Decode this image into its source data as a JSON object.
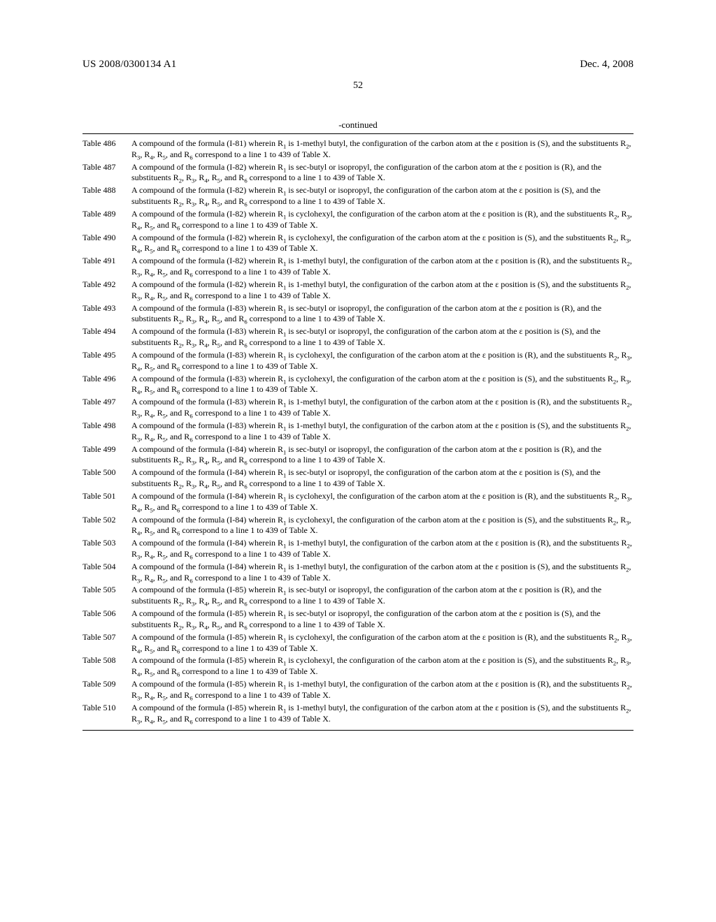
{
  "header": {
    "left": "US 2008/0300134 A1",
    "right": "Dec. 4, 2008"
  },
  "pageNumber": "52",
  "continuedLabel": "-continued",
  "substituentsHtml": "R<sub>2</sub>, R<sub>3</sub>, R<sub>4</sub>, R<sub>5</sub>, and R<sub>6</sub>",
  "r1Html": "R<sub>1</sub>",
  "epsilonHtml": "ε",
  "entries": [
    {
      "n": 486,
      "f": "I-81",
      "r1": "1-methyl butyl",
      "cfg": "S",
      "short": true
    },
    {
      "n": 487,
      "f": "I-82",
      "r1": "sec-butyl or isopropyl",
      "cfg": "R",
      "short": false
    },
    {
      "n": 488,
      "f": "I-82",
      "r1": "sec-butyl or isopropyl",
      "cfg": "S",
      "short": false
    },
    {
      "n": 489,
      "f": "I-82",
      "r1": "cyclohexyl",
      "cfg": "R",
      "short": true
    },
    {
      "n": 490,
      "f": "I-82",
      "r1": "cyclohexyl",
      "cfg": "S",
      "short": true
    },
    {
      "n": 491,
      "f": "I-82",
      "r1": "1-methyl butyl",
      "cfg": "R",
      "short": true
    },
    {
      "n": 492,
      "f": "I-82",
      "r1": "1-methyl butyl",
      "cfg": "S",
      "short": true
    },
    {
      "n": 493,
      "f": "I-83",
      "r1": "sec-butyl or isopropyl",
      "cfg": "R",
      "short": false
    },
    {
      "n": 494,
      "f": "I-83",
      "r1": "sec-butyl or isopropyl",
      "cfg": "S",
      "short": false
    },
    {
      "n": 495,
      "f": "I-83",
      "r1": "cyclohexyl",
      "cfg": "R",
      "short": true
    },
    {
      "n": 496,
      "f": "I-83",
      "r1": "cyclohexyl",
      "cfg": "S",
      "short": true
    },
    {
      "n": 497,
      "f": "I-83",
      "r1": "1-methyl butyl",
      "cfg": "R",
      "short": true
    },
    {
      "n": 498,
      "f": "I-83",
      "r1": "1-methyl butyl",
      "cfg": "S",
      "short": true
    },
    {
      "n": 499,
      "f": "I-84",
      "r1": "sec-butyl or isopropyl",
      "cfg": "R",
      "short": false
    },
    {
      "n": 500,
      "f": "I-84",
      "r1": "sec-butyl or isopropyl",
      "cfg": "S",
      "short": false
    },
    {
      "n": 501,
      "f": "I-84",
      "r1": "cyclohexyl",
      "cfg": "R",
      "short": true
    },
    {
      "n": 502,
      "f": "I-84",
      "r1": "cyclohexyl",
      "cfg": "S",
      "short": true
    },
    {
      "n": 503,
      "f": "I-84",
      "r1": "1-methyl butyl",
      "cfg": "R",
      "short": true
    },
    {
      "n": 504,
      "f": "I-84",
      "r1": "1-methyl butyl",
      "cfg": "S",
      "short": true
    },
    {
      "n": 505,
      "f": "I-85",
      "r1": "sec-butyl or isopropyl",
      "cfg": "R",
      "short": false
    },
    {
      "n": 506,
      "f": "I-85",
      "r1": "sec-butyl or isopropyl",
      "cfg": "S",
      "short": false
    },
    {
      "n": 507,
      "f": "I-85",
      "r1": "cyclohexyl",
      "cfg": "R",
      "short": true
    },
    {
      "n": 508,
      "f": "I-85",
      "r1": "cyclohexyl",
      "cfg": "S",
      "short": true
    },
    {
      "n": 509,
      "f": "I-85",
      "r1": "1-methyl butyl",
      "cfg": "R",
      "short": true
    },
    {
      "n": 510,
      "f": "I-85",
      "r1": "1-methyl butyl",
      "cfg": "S",
      "short": true
    }
  ]
}
